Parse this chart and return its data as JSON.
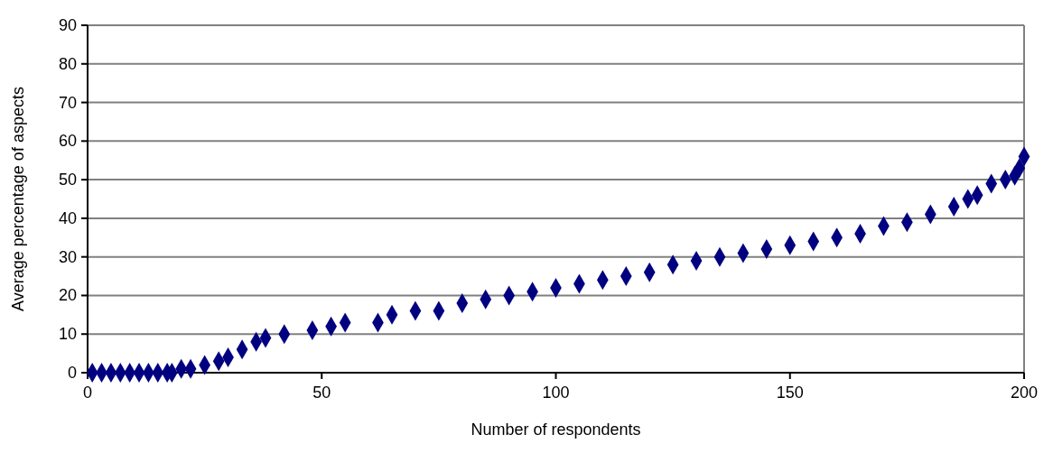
{
  "chart_data": {
    "type": "scatter",
    "xlabel": "Number of respondents",
    "ylabel": "Average percentage of aspects",
    "x": [
      1,
      3,
      5,
      7,
      9,
      11,
      13,
      15,
      17,
      18,
      20,
      22,
      25,
      28,
      30,
      33,
      36,
      38,
      42,
      48,
      52,
      55,
      62,
      65,
      70,
      75,
      80,
      85,
      90,
      95,
      100,
      105,
      110,
      115,
      120,
      125,
      130,
      135,
      140,
      145,
      150,
      155,
      160,
      165,
      170,
      175,
      180,
      185,
      188,
      190,
      193,
      196,
      198,
      199,
      200
    ],
    "series": [
      {
        "color": "#000080",
        "values": [
          0,
          0,
          0,
          0,
          0,
          0,
          0,
          0,
          0,
          0,
          1,
          1,
          2,
          3,
          4,
          6,
          8,
          9,
          10,
          11,
          12,
          13,
          13,
          15,
          16,
          16,
          18,
          19,
          20,
          21,
          22,
          23,
          24,
          25,
          26,
          28,
          29,
          30,
          31,
          32,
          33,
          34,
          35,
          36,
          38,
          39,
          41,
          43,
          45,
          46,
          49,
          50,
          51,
          53,
          56
        ]
      }
    ],
    "xlim": [
      0,
      200
    ],
    "ylim": [
      0,
      90
    ],
    "xticks": [
      0,
      50,
      100,
      150,
      200
    ],
    "yticks": [
      0,
      10,
      20,
      30,
      40,
      50,
      60,
      70,
      80,
      90
    ],
    "grid": "y",
    "marker": "diamond"
  }
}
